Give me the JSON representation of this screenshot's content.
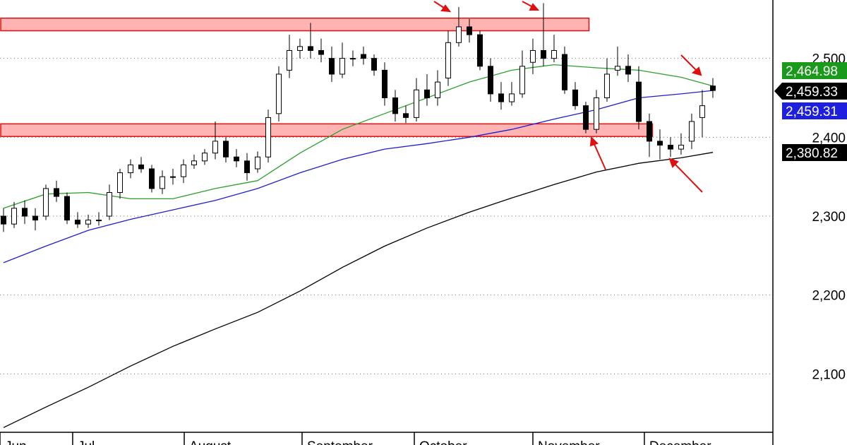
{
  "chart_data": {
    "type": "candlestick",
    "open": [
      2300,
      2290,
      2310,
      2300,
      2300,
      2335,
      2325,
      2295,
      2290,
      2295,
      2300,
      2330,
      2355,
      2365,
      2360,
      2335,
      2350,
      2350,
      2365,
      2370,
      2380,
      2395,
      2375,
      2370,
      2360,
      2375,
      2430,
      2485,
      2510,
      2515,
      2510,
      2500,
      2480,
      2500,
      2505,
      2500,
      2485,
      2450,
      2430,
      2425,
      2460,
      2450,
      2475,
      2520,
      2540,
      2530,
      2490,
      2455,
      2445,
      2455,
      2495,
      2510,
      2500,
      2505,
      2460,
      2440,
      2410,
      2450,
      2485,
      2490,
      2470,
      2420,
      2395,
      2390,
      2385,
      2395,
      2425,
      2465
    ],
    "high": [
      2310,
      2318,
      2320,
      2310,
      2340,
      2345,
      2330,
      2305,
      2302,
      2305,
      2340,
      2360,
      2372,
      2375,
      2365,
      2358,
      2360,
      2372,
      2378,
      2385,
      2420,
      2400,
      2385,
      2380,
      2382,
      2435,
      2490,
      2530,
      2525,
      2545,
      2525,
      2515,
      2520,
      2510,
      2515,
      2505,
      2495,
      2460,
      2440,
      2475,
      2480,
      2485,
      2535,
      2565,
      2550,
      2535,
      2500,
      2470,
      2470,
      2510,
      2525,
      2570,
      2530,
      2515,
      2470,
      2445,
      2460,
      2500,
      2515,
      2505,
      2490,
      2430,
      2410,
      2400,
      2405,
      2430,
      2460,
      2475
    ],
    "low": [
      2280,
      2285,
      2290,
      2282,
      2295,
      2318,
      2290,
      2285,
      2285,
      2288,
      2295,
      2322,
      2348,
      2355,
      2330,
      2328,
      2340,
      2342,
      2360,
      2365,
      2372,
      2368,
      2362,
      2345,
      2355,
      2368,
      2420,
      2475,
      2500,
      2500,
      2495,
      2470,
      2475,
      2490,
      2492,
      2478,
      2440,
      2420,
      2418,
      2420,
      2440,
      2440,
      2465,
      2515,
      2520,
      2485,
      2445,
      2435,
      2440,
      2450,
      2480,
      2490,
      2495,
      2455,
      2435,
      2405,
      2405,
      2445,
      2478,
      2470,
      2410,
      2375,
      2372,
      2375,
      2378,
      2385,
      2400,
      2450
    ],
    "close": [
      2290,
      2310,
      2300,
      2295,
      2335,
      2325,
      2295,
      2290,
      2295,
      2295,
      2330,
      2355,
      2365,
      2360,
      2335,
      2350,
      2350,
      2365,
      2370,
      2380,
      2395,
      2375,
      2370,
      2355,
      2375,
      2425,
      2480,
      2510,
      2515,
      2510,
      2505,
      2480,
      2500,
      2500,
      2500,
      2485,
      2450,
      2430,
      2425,
      2460,
      2450,
      2470,
      2520,
      2540,
      2530,
      2490,
      2455,
      2445,
      2455,
      2490,
      2510,
      2500,
      2510,
      2460,
      2440,
      2410,
      2450,
      2480,
      2490,
      2480,
      2420,
      2395,
      2390,
      2385,
      2390,
      2420,
      2440,
      2459.33
    ],
    "up_color": "#ffffff",
    "down_color": "#000000",
    "last_close_label": "2,459.33",
    "series": [
      {
        "color": "#2ca02c",
        "x": [
          0,
          4,
          8,
          12,
          16,
          20,
          24,
          28,
          32,
          36,
          40,
          44,
          48,
          52,
          56,
          60,
          64,
          67
        ],
        "values": [
          2310,
          2328,
          2330,
          2322,
          2322,
          2335,
          2345,
          2380,
          2410,
          2430,
          2450,
          2470,
          2485,
          2492,
          2488,
          2485,
          2476,
          2464.98
        ],
        "last_value_label": "2,464.98"
      },
      {
        "color": "#1f1fd0",
        "x": [
          0,
          4,
          8,
          12,
          16,
          20,
          24,
          28,
          32,
          36,
          40,
          44,
          48,
          52,
          56,
          60,
          64,
          67
        ],
        "values": [
          2241,
          2262,
          2282,
          2296,
          2308,
          2320,
          2335,
          2355,
          2372,
          2385,
          2392,
          2400,
          2410,
          2423,
          2435,
          2450,
          2455,
          2459.31
        ],
        "last_value_label": "2,459.31"
      },
      {
        "color": "#000000",
        "x": [
          0,
          4,
          8,
          12,
          16,
          20,
          24,
          28,
          32,
          36,
          40,
          44,
          48,
          52,
          56,
          60,
          64,
          67
        ],
        "values": [
          2032,
          2058,
          2083,
          2110,
          2135,
          2157,
          2178,
          2205,
          2235,
          2262,
          2285,
          2305,
          2323,
          2340,
          2356,
          2367,
          2374,
          2380.82
        ],
        "last_value_label": "2,380.82"
      }
    ],
    "zones": [
      {
        "from": 2535,
        "to": 2551,
        "x_end": 55.3
      },
      {
        "from": 2401,
        "to": 2417,
        "x_end": 61.3
      }
    ],
    "zone_color": "#ffb3b3",
    "xlim": [
      -0.333,
      72.67
    ],
    "ylim": [
      2026,
      2574
    ],
    "yticks": [
      {
        "value": 2100,
        "label": "2,100"
      },
      {
        "value": 2200,
        "label": "2,200"
      },
      {
        "value": 2300,
        "label": "2,300"
      },
      {
        "value": 2400,
        "label": "2,400"
      },
      {
        "value": 2500,
        "label": "2,500"
      }
    ],
    "xticks": [
      {
        "value": -0.333,
        "label": "Jun"
      },
      {
        "value": 6.53,
        "label": "Jul"
      },
      {
        "value": 17.07,
        "label": "August"
      },
      {
        "value": 28.2,
        "label": "September"
      },
      {
        "value": 38.8,
        "label": "October"
      },
      {
        "value": 50,
        "label": "November"
      },
      {
        "value": 60.53,
        "label": "December"
      }
    ],
    "grid": true
  }
}
